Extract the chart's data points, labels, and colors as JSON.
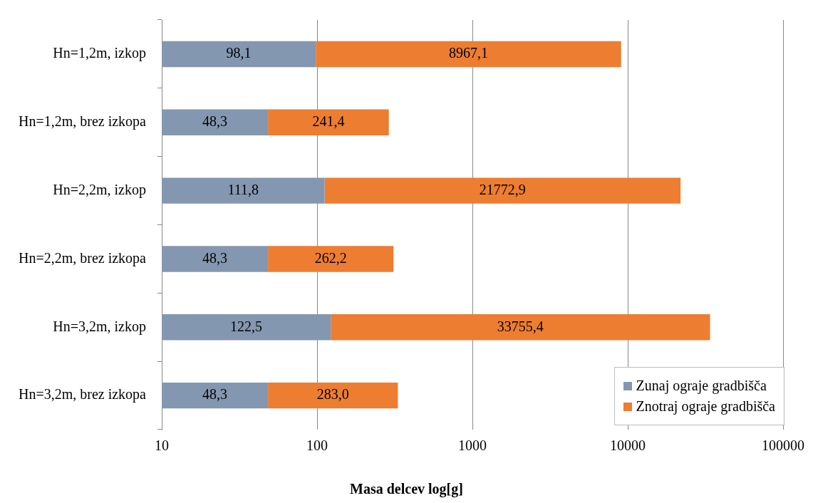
{
  "chart_data": {
    "type": "bar",
    "orientation": "horizontal",
    "stacked": true,
    "log": "x",
    "xlabel": "Masa delcev log[g]",
    "categories": [
      "Hn=1,2m, izkop",
      "Hn=1,2m, brez izkopa",
      "Hn=2,2m, izkop",
      "Hn=2,2m, brez izkopa",
      "Hn=3,2m, izkop",
      "Hn=3,2m, brez izkopa"
    ],
    "series": [
      {
        "name": "Zunaj ograje gradbišča",
        "color": "#8497b0",
        "values": [
          98.1,
          48.3,
          111.8,
          48.3,
          122.5,
          48.3
        ],
        "value_labels": [
          "98,1",
          "48,3",
          "111,8",
          "48,3",
          "122,5",
          "48,3"
        ]
      },
      {
        "name": "Znotraj ograje gradbišča",
        "color": "#ed7d31",
        "values": [
          8967.1,
          241.4,
          21772.9,
          262.2,
          33755.4,
          283.0
        ],
        "value_labels": [
          "8967,1",
          "241,4",
          "21772,9",
          "262,2",
          "33755,4",
          "283,0"
        ]
      }
    ],
    "xlim": [
      10,
      100000
    ],
    "xticks": [
      10,
      100,
      1000,
      10000,
      100000
    ],
    "grid": "x",
    "legend": "bottom right"
  }
}
